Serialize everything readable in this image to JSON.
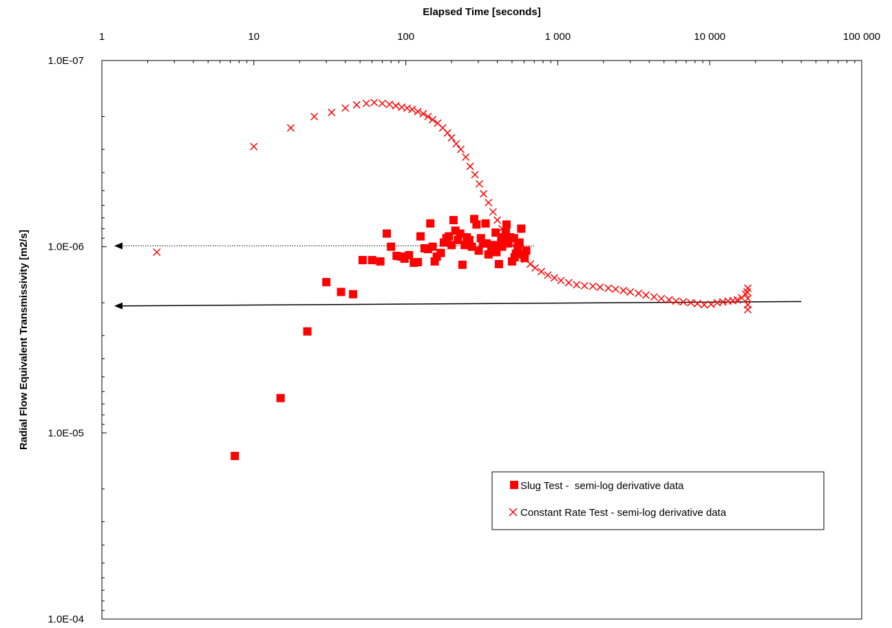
{
  "chart_data": {
    "type": "scatter",
    "title": "",
    "xlabel": "Elapsed Time [seconds]",
    "ylabel": "Radial Flow Equivalent Transmissivity [m2/s]",
    "x_scale": "log",
    "y_scale": "log",
    "y_inverted": true,
    "xlim": [
      1,
      100000
    ],
    "ylim": [
      1e-07,
      0.0001
    ],
    "x_ticks": [
      {
        "value": 1,
        "label": "1"
      },
      {
        "value": 10,
        "label": "10"
      },
      {
        "value": 100,
        "label": "100"
      },
      {
        "value": 1000,
        "label": "1 000"
      },
      {
        "value": 10000,
        "label": "10 000"
      },
      {
        "value": 100000,
        "label": "100 000"
      }
    ],
    "y_ticks": [
      {
        "value": 1e-07,
        "label": "1.0E-07"
      },
      {
        "value": 1e-06,
        "label": "1.0E-06"
      },
      {
        "value": 1e-05,
        "label": "1.0E-05"
      },
      {
        "value": 0.0001,
        "label": "1.0E-04"
      }
    ],
    "grid": false,
    "legend_position": "bottom-right",
    "colors": {
      "series": "#ff0000",
      "axis": "#000000",
      "reference": "#000000"
    },
    "series": [
      {
        "name": "Slug Test -  semi-log derivative data",
        "marker": "square",
        "points": [
          [
            7.5,
            1.33e-05
          ],
          [
            15,
            6.5e-06
          ],
          [
            22.5,
            2.85e-06
          ],
          [
            30,
            1.55e-06
          ],
          [
            37.5,
            1.75e-06
          ],
          [
            45,
            1.8e-06
          ],
          [
            52,
            1.18e-06
          ],
          [
            60,
            1.18e-06
          ],
          [
            68,
            1.2e-06
          ],
          [
            75,
            8.5e-07
          ],
          [
            80,
            1e-06
          ],
          [
            87,
            1.12e-06
          ],
          [
            93,
            1.13e-06
          ],
          [
            98,
            1.16e-06
          ],
          [
            105,
            1.11e-06
          ],
          [
            113,
            1.22e-06
          ],
          [
            120,
            1.21e-06
          ],
          [
            125,
            8.8e-07
          ],
          [
            133,
            1.02e-06
          ],
          [
            140,
            1.03e-06
          ],
          [
            145,
            7.5e-07
          ],
          [
            150,
            1e-06
          ],
          [
            155,
            1.2e-06
          ],
          [
            160,
            1.13e-06
          ],
          [
            170,
            1.08e-06
          ],
          [
            178,
            9.5e-07
          ],
          [
            185,
            9e-07
          ],
          [
            192,
            8.8e-07
          ],
          [
            200,
            9.8e-07
          ],
          [
            206,
            7.2e-07
          ],
          [
            212,
            8.2e-07
          ],
          [
            220,
            9.2e-07
          ],
          [
            228,
            8.5e-07
          ],
          [
            236,
            1.25e-06
          ],
          [
            244,
            9.8e-07
          ],
          [
            252,
            8.9e-07
          ],
          [
            262,
            9.2e-07
          ],
          [
            272,
            1e-06
          ],
          [
            282,
            7.1e-07
          ],
          [
            292,
            7.6e-07
          ],
          [
            302,
            1.05e-06
          ],
          [
            312,
            9e-07
          ],
          [
            322,
            9.6e-07
          ],
          [
            335,
            7.5e-07
          ],
          [
            350,
            1.1e-06
          ],
          [
            365,
            1.02e-06
          ],
          [
            380,
            9.8e-07
          ],
          [
            395,
            1.07e-06
          ],
          [
            410,
            1.24e-06
          ],
          [
            425,
            9.3e-07
          ],
          [
            440,
            8.9e-07
          ],
          [
            455,
            8.4e-07
          ],
          [
            470,
            9.6e-07
          ],
          [
            485,
            8.9e-07
          ],
          [
            500,
            1.2e-06
          ],
          [
            515,
            9e-07
          ],
          [
            530,
            1.09e-06
          ],
          [
            545,
            1e-06
          ],
          [
            560,
            9.5e-07
          ],
          [
            575,
            8e-07
          ],
          [
            590,
            1.1e-06
          ],
          [
            605,
            1.15e-06
          ],
          [
            620,
            1.05e-06
          ],
          [
            460,
            7.6e-07
          ],
          [
            520,
            1.14e-06
          ],
          [
            430,
            1e-06
          ],
          [
            390,
            8.4e-07
          ],
          [
            340,
            9.6e-07
          ]
        ]
      },
      {
        "name": "Constant Rate Test - semi-log derivative data",
        "marker": "x",
        "points": [
          [
            2.3,
            1.07e-06
          ],
          [
            10,
            2.9e-07
          ],
          [
            17.5,
            2.3e-07
          ],
          [
            25,
            2e-07
          ],
          [
            32.5,
            1.9e-07
          ],
          [
            40,
            1.8e-07
          ],
          [
            47.5,
            1.73e-07
          ],
          [
            55,
            1.7e-07
          ],
          [
            62,
            1.68e-07
          ],
          [
            70,
            1.7e-07
          ],
          [
            78,
            1.72e-07
          ],
          [
            86,
            1.75e-07
          ],
          [
            94,
            1.78e-07
          ],
          [
            102,
            1.8e-07
          ],
          [
            110,
            1.83e-07
          ],
          [
            120,
            1.88e-07
          ],
          [
            130,
            1.93e-07
          ],
          [
            140,
            2e-07
          ],
          [
            150,
            2.08e-07
          ],
          [
            162,
            2.17e-07
          ],
          [
            175,
            2.3e-07
          ],
          [
            188,
            2.45e-07
          ],
          [
            200,
            2.6e-07
          ],
          [
            215,
            2.8e-07
          ],
          [
            230,
            3e-07
          ],
          [
            248,
            3.3e-07
          ],
          [
            265,
            3.7e-07
          ],
          [
            285,
            4.1e-07
          ],
          [
            305,
            4.6e-07
          ],
          [
            325,
            5.2e-07
          ],
          [
            350,
            5.8e-07
          ],
          [
            375,
            6.5e-07
          ],
          [
            400,
            7.2e-07
          ],
          [
            430,
            8e-07
          ],
          [
            460,
            8.8e-07
          ],
          [
            495,
            9.6e-07
          ],
          [
            530,
            1.03e-06
          ],
          [
            570,
            1.1e-06
          ],
          [
            610,
            1.17e-06
          ],
          [
            660,
            1.24e-06
          ],
          [
            710,
            1.3e-06
          ],
          [
            780,
            1.36e-06
          ],
          [
            860,
            1.42e-06
          ],
          [
            950,
            1.47e-06
          ],
          [
            1050,
            1.52e-06
          ],
          [
            1180,
            1.56e-06
          ],
          [
            1330,
            1.6e-06
          ],
          [
            1500,
            1.62e-06
          ],
          [
            1700,
            1.63e-06
          ],
          [
            1900,
            1.65e-06
          ],
          [
            2150,
            1.67e-06
          ],
          [
            2400,
            1.69e-06
          ],
          [
            2700,
            1.72e-06
          ],
          [
            3000,
            1.75e-06
          ],
          [
            3400,
            1.78e-06
          ],
          [
            3800,
            1.82e-06
          ],
          [
            4300,
            1.86e-06
          ],
          [
            4800,
            1.9e-06
          ],
          [
            5400,
            1.93e-06
          ],
          [
            6000,
            1.96e-06
          ],
          [
            6700,
            1.98e-06
          ],
          [
            7500,
            2e-06
          ],
          [
            8300,
            2.02e-06
          ],
          [
            9200,
            2.05e-06
          ],
          [
            10200,
            2.04e-06
          ],
          [
            11200,
            2e-06
          ],
          [
            12200,
            1.98e-06
          ],
          [
            13200,
            1.96e-06
          ],
          [
            14200,
            1.95e-06
          ],
          [
            15200,
            1.93e-06
          ],
          [
            16200,
            1.88e-06
          ],
          [
            17200,
            1.8e-06
          ],
          [
            17800,
            1.67e-06
          ],
          [
            17800,
            1.9e-06
          ],
          [
            17800,
            2.05e-06
          ],
          [
            17800,
            2.18e-06
          ],
          [
            17600,
            1.75e-06
          ]
        ]
      }
    ],
    "reference_lines": [
      {
        "name": "dotted-reference-arrow",
        "style": "dotted",
        "x": [
          1,
          700
        ],
        "y": [
          9.9e-07,
          9.9e-07
        ]
      },
      {
        "name": "solid-reference-arrow",
        "style": "solid",
        "x": [
          1,
          40000
        ],
        "y": [
          2.08e-06,
          1.97e-06
        ]
      }
    ]
  }
}
